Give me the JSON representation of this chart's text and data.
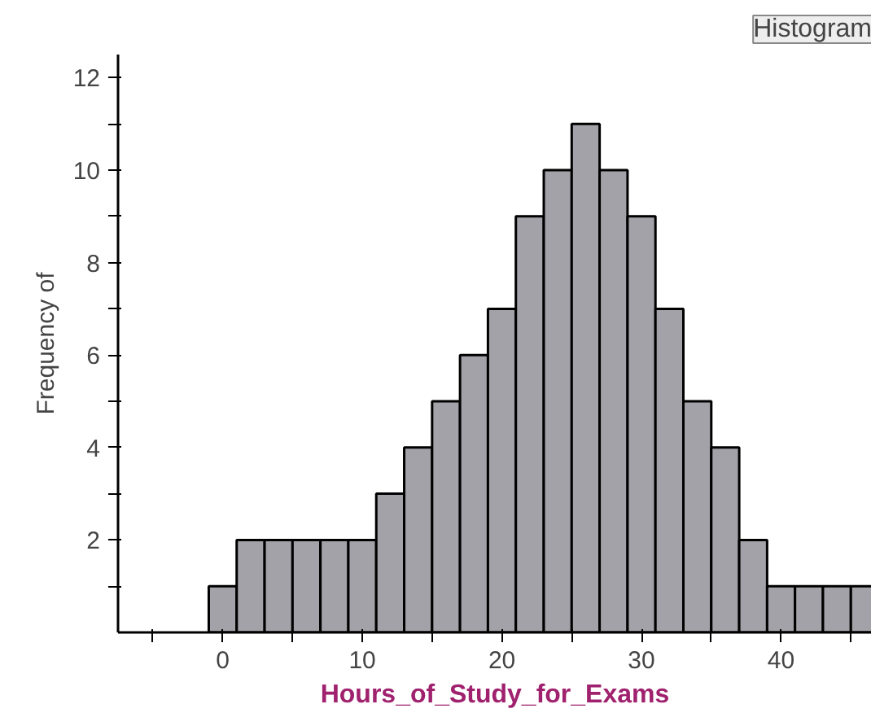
{
  "chart_data": {
    "type": "histogram",
    "xlabel": "Hours_of_Study_for_Exams",
    "ylabel": "Frequency of",
    "bins": [
      -1,
      1,
      3,
      5,
      7,
      9,
      11,
      13,
      15,
      17,
      19,
      21,
      23,
      25,
      27,
      29,
      31,
      33,
      35,
      37,
      39,
      41,
      43,
      45,
      47
    ],
    "values": [
      1,
      2,
      2,
      2,
      2,
      2,
      3,
      4,
      5,
      6,
      7,
      9,
      10,
      11,
      10,
      9,
      7,
      5,
      4,
      2,
      1,
      1,
      1,
      1
    ],
    "color": "#a3a2a8",
    "xlim": [
      -7.5,
      46.5
    ],
    "xticks": [
      {
        "value": -5,
        "label": null
      },
      0,
      {
        "value": 5,
        "label": null
      },
      10,
      {
        "value": 15,
        "label": null
      },
      20,
      {
        "value": 25,
        "label": null
      },
      30,
      {
        "value": 35,
        "label": null
      },
      40,
      {
        "value": 45,
        "label": null
      }
    ],
    "ylim": [
      0,
      12.5
    ],
    "yticks": [
      {
        "value": 1,
        "label": null
      },
      2,
      {
        "value": 3,
        "label": null
      },
      4,
      {
        "value": 5,
        "label": null
      },
      6,
      {
        "value": 7,
        "label": null
      },
      8,
      {
        "value": 9,
        "label": null
      },
      10,
      {
        "value": 11,
        "label": null
      },
      12
    ],
    "grid": false,
    "annotations": [
      "Histogram"
    ]
  }
}
